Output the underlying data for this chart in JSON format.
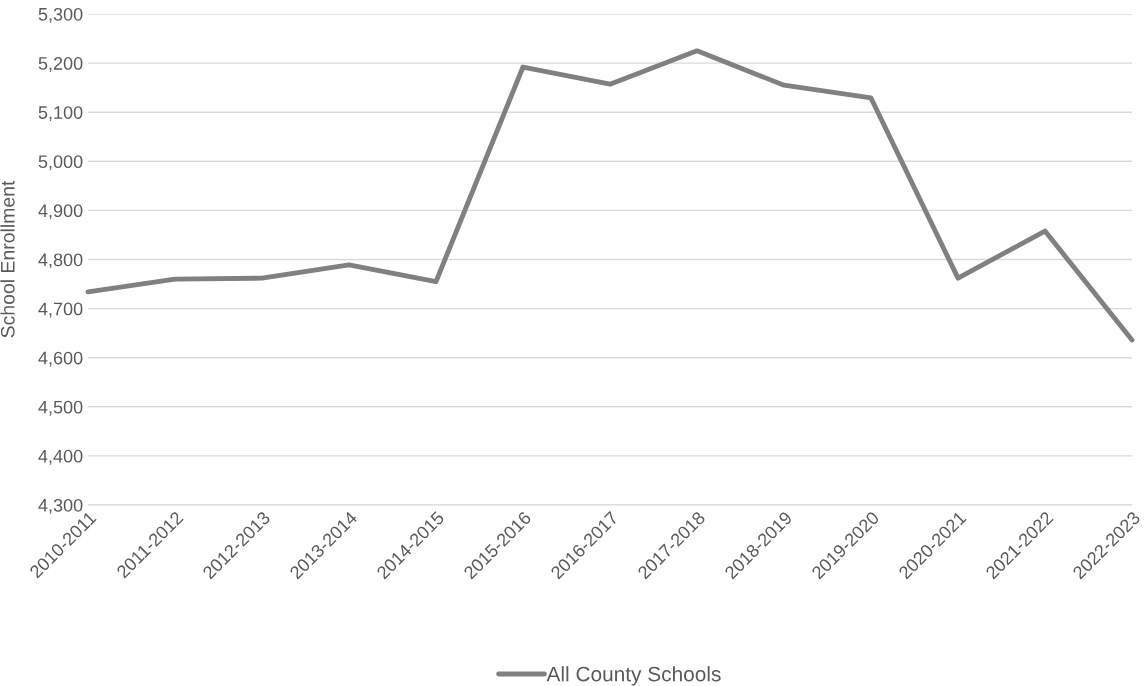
{
  "chart_data": {
    "type": "line",
    "ylabel": "School Enrollment",
    "categories": [
      "2010-2011",
      "2011-2012",
      "2012-2013",
      "2013-2014",
      "2014-2015",
      "2015-2016",
      "2016-2017",
      "2017-2018",
      "2018-2019",
      "2019-2020",
      "2020-2021",
      "2021-2022",
      "2022-2023"
    ],
    "series": [
      {
        "name": "All County Schools",
        "color": "#808080",
        "values": [
          4734,
          4760,
          4762,
          4789,
          4755,
          5192,
          5157,
          5225,
          5155,
          5129,
          4762,
          4858,
          4636
        ]
      }
    ],
    "ylim": [
      4300,
      5300
    ],
    "yticks": [
      {
        "value": 4300,
        "label": "4,300"
      },
      {
        "value": 4400,
        "label": "4,400"
      },
      {
        "value": 4500,
        "label": "4,500"
      },
      {
        "value": 4600,
        "label": "4,600"
      },
      {
        "value": 4700,
        "label": "4,700"
      },
      {
        "value": 4800,
        "label": "4,800"
      },
      {
        "value": 4900,
        "label": "4,900"
      },
      {
        "value": 5000,
        "label": "5,000"
      },
      {
        "value": 5100,
        "label": "5,100"
      },
      {
        "value": 5200,
        "label": "5,200"
      },
      {
        "value": 5300,
        "label": "5,300"
      }
    ],
    "grid": "y",
    "legend": "bottom",
    "marker": "none",
    "line_style": "solid"
  }
}
